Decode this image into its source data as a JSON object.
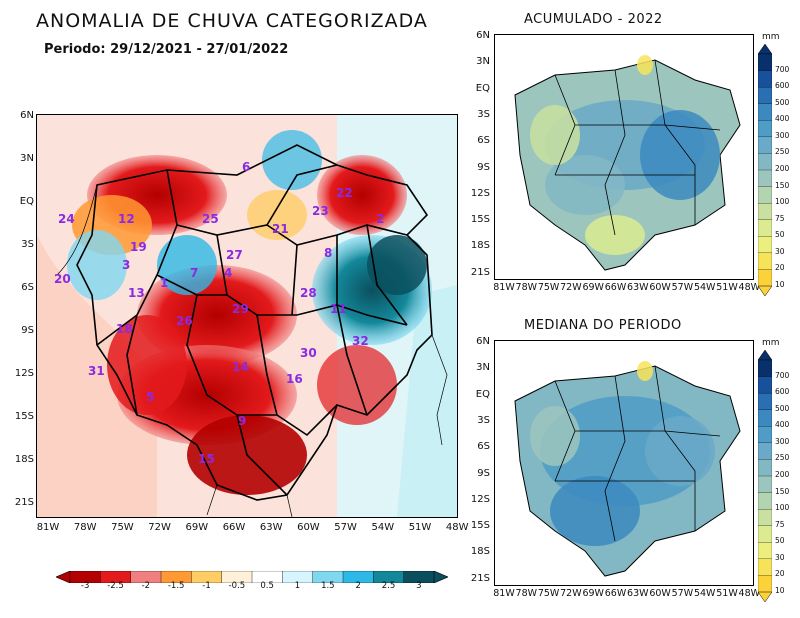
{
  "header": {
    "title": "ANOMALIA DE CHUVA CATEGORIZADA",
    "period": "Periodo: 29/12/2021 - 27/01/2022"
  },
  "main_map": {
    "lat_labels": [
      "6N",
      "3N",
      "EQ",
      "3S",
      "6S",
      "9S",
      "12S",
      "15S",
      "18S",
      "21S"
    ],
    "lon_labels": [
      "81W",
      "78W",
      "75W",
      "72W",
      "69W",
      "66W",
      "63W",
      "60W",
      "57W",
      "54W",
      "51W",
      "48W"
    ],
    "regions": [
      "6",
      "22",
      "23",
      "24",
      "12",
      "25",
      "21",
      "2",
      "19",
      "8",
      "27",
      "3",
      "7",
      "20",
      "13",
      "1",
      "4",
      "28",
      "29",
      "11",
      "18",
      "26",
      "32",
      "30",
      "31",
      "14",
      "16",
      "5",
      "9",
      "15"
    ]
  },
  "anomaly_colorbar": {
    "labels": [
      "-3",
      "-2.5",
      "-2",
      "-1.5",
      "-1",
      "-0.5",
      "0.5",
      "1",
      "1.5",
      "2",
      "2.5",
      "3"
    ],
    "colors": [
      "#b30000",
      "#e31a1c",
      "#f08080",
      "#ff9933",
      "#ffcc66",
      "#fff0d9",
      "#ffffff",
      "#d6f5ff",
      "#7fd7f0",
      "#2eb8e6",
      "#13889a",
      "#0b4f5e"
    ]
  },
  "small_maps": [
    {
      "title": "ACUMULADO - 2022",
      "unit": "mm"
    },
    {
      "title": "MEDIANA DO PERIODO",
      "unit": "mm"
    }
  ],
  "small_lat_labels": [
    "6N",
    "3N",
    "EQ",
    "3S",
    "6S",
    "9S",
    "12S",
    "15S",
    "18S",
    "21S"
  ],
  "small_lon_labels": [
    "81W",
    "78W",
    "75W",
    "72W",
    "69W",
    "66W",
    "63W",
    "60W",
    "57W",
    "54W",
    "51W",
    "48W"
  ],
  "precip_colorbar": {
    "labels": [
      "700",
      "600",
      "500",
      "400",
      "300",
      "250",
      "200",
      "150",
      "100",
      "75",
      "50",
      "30",
      "20",
      "10"
    ],
    "colors": [
      "#08306b",
      "#17519c",
      "#2a6fb1",
      "#3c89c0",
      "#4f9cc7",
      "#6aa9c8",
      "#82b7c4",
      "#9cc5bd",
      "#b3d4b0",
      "#c9e0a0",
      "#dceb92",
      "#ecef7e",
      "#f7e35a",
      "#fcd23a"
    ]
  }
}
